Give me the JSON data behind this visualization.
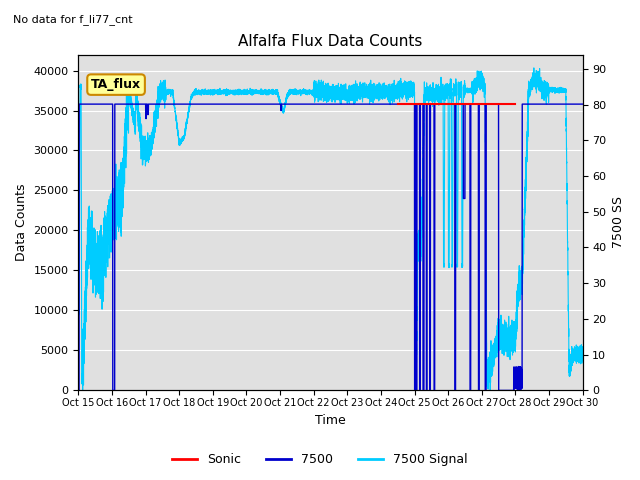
{
  "title": "Alfalfa Flux Data Counts",
  "subtitle": "No data for f_li77_cnt",
  "xlabel": "Time",
  "ylabel_left": "Data Counts",
  "ylabel_right": "7500 SS",
  "annotation": "TA_flux",
  "xlim": [
    0,
    15
  ],
  "ylim_left": [
    0,
    42000
  ],
  "ylim_right": [
    0,
    94
  ],
  "yticks_left": [
    0,
    5000,
    10000,
    15000,
    20000,
    25000,
    30000,
    35000,
    40000
  ],
  "yticks_right": [
    0,
    10,
    20,
    30,
    40,
    50,
    60,
    70,
    80,
    90
  ],
  "xtick_labels": [
    "Oct 15",
    "Oct 16",
    "Oct 17",
    "Oct 18",
    "Oct 19",
    "Oct 20",
    "Oct 21",
    "Oct 22",
    "Oct 23",
    "Oct 24",
    "Oct 25",
    "Oct 26",
    "Oct 27",
    "Oct 28",
    "Oct 29",
    "Oct 30"
  ],
  "bg_color": "#e0e0e0",
  "sonic_color": "#ff0000",
  "s7500_color": "#0000cc",
  "signal_color": "#00ccff",
  "legend_labels": [
    "Sonic",
    "7500",
    "7500 Signal"
  ]
}
